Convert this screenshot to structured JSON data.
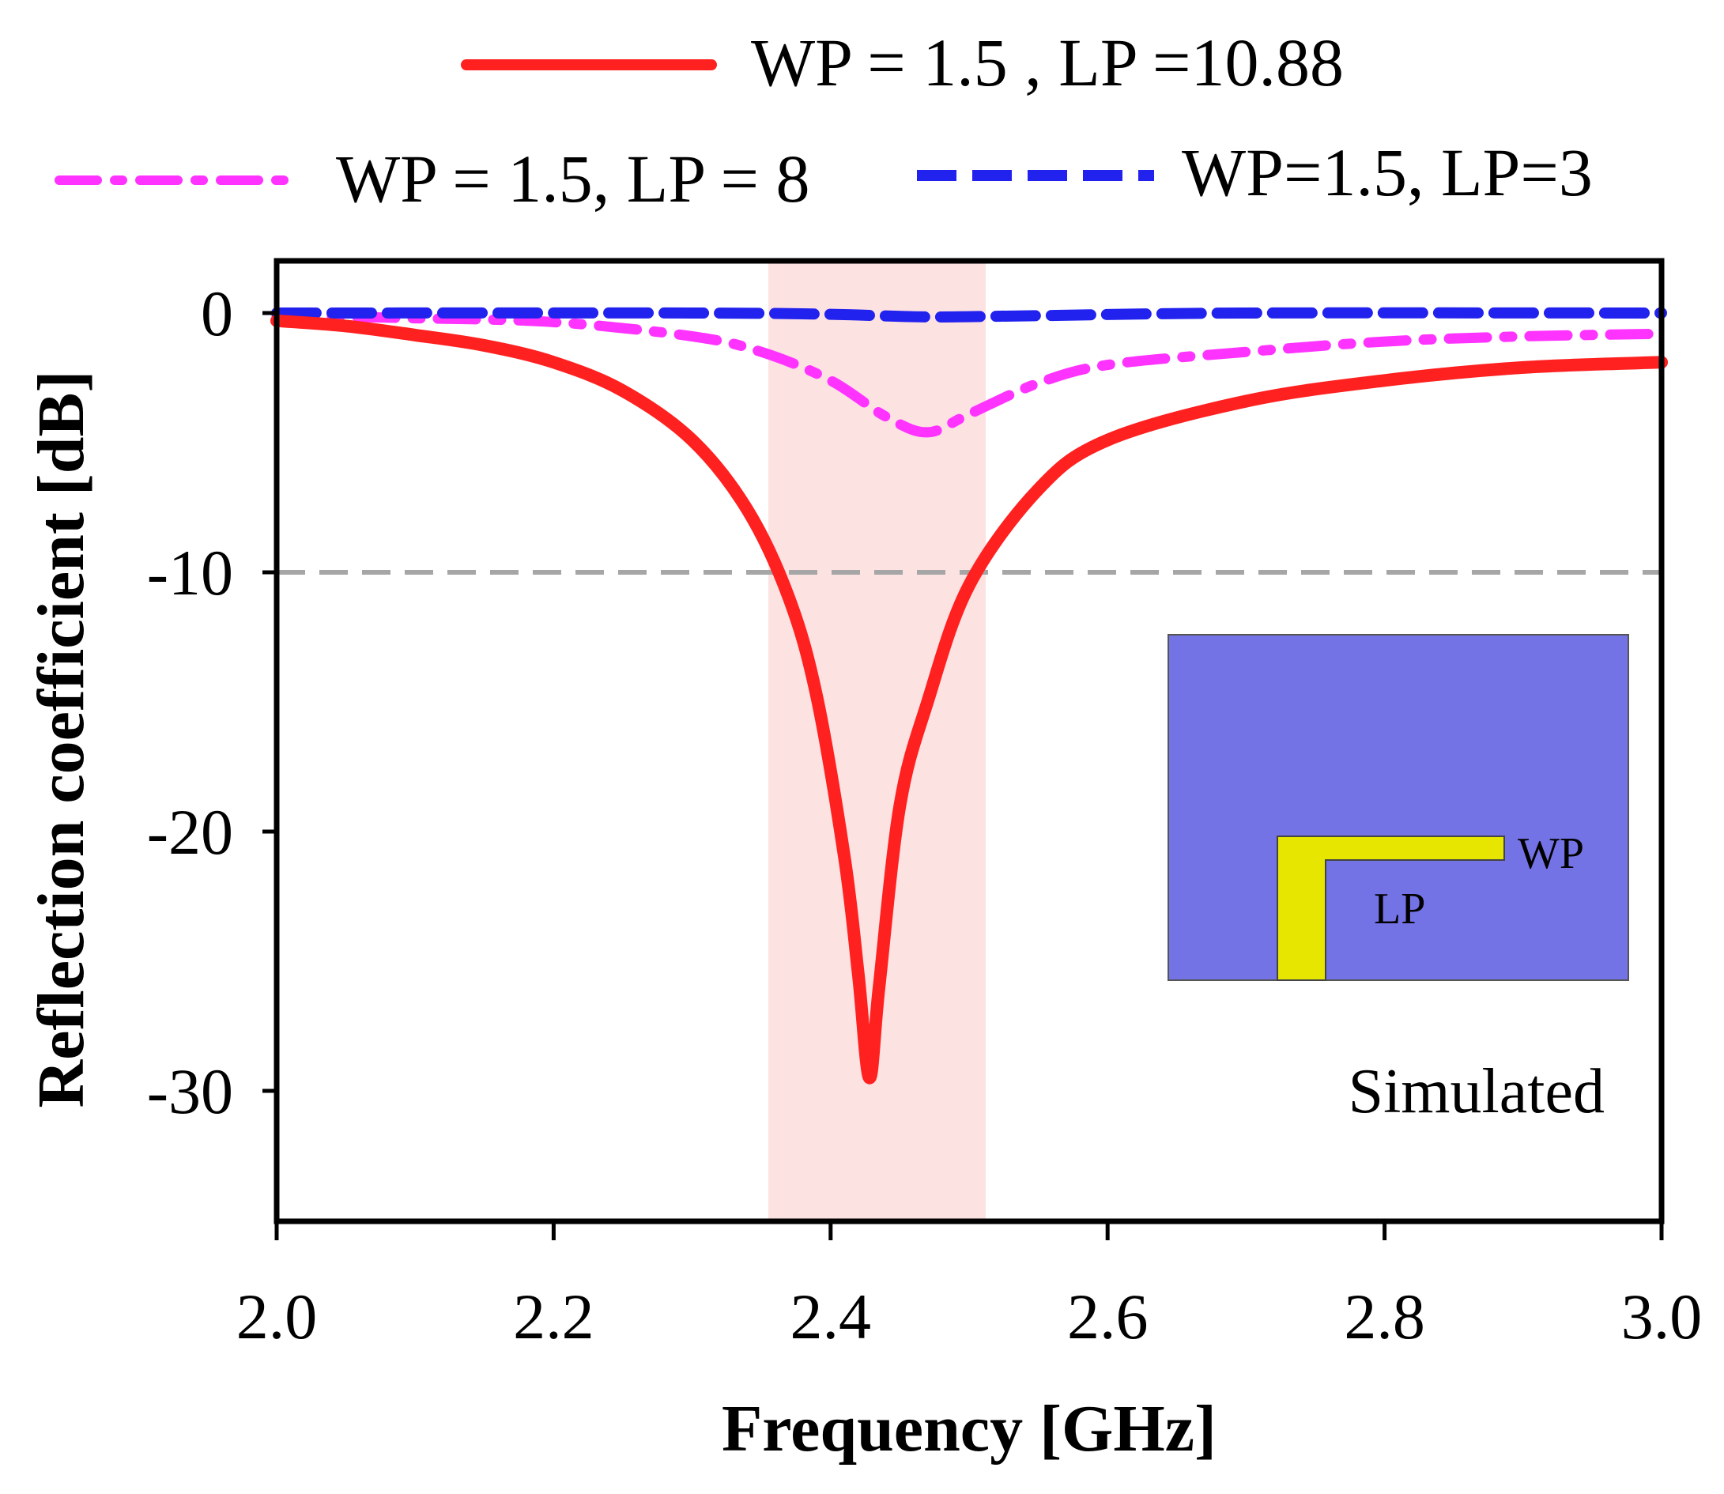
{
  "chart_data": {
    "type": "line",
    "title": "",
    "xlabel": "Frequency [GHz]",
    "ylabel": "Reflection coefficient [dB]",
    "xlim": [
      2.0,
      3.0
    ],
    "ylim": [
      -35,
      2
    ],
    "x_ticks": [
      "2.0",
      "2.2",
      "2.4",
      "2.6",
      "2.8",
      "3.0"
    ],
    "y_ticks": [
      "0",
      "-10",
      "-20",
      "-30"
    ],
    "x_tick_values": [
      2.0,
      2.2,
      2.4,
      2.6,
      2.8,
      3.0
    ],
    "y_tick_values": [
      0,
      -10,
      -20,
      -30
    ],
    "grid": false,
    "reference_line": {
      "y": -10,
      "color": "#a6a6a6",
      "style": "dashed"
    },
    "highlight_band": {
      "x_start": 2.355,
      "x_end": 2.512,
      "color": "#fde2e2"
    },
    "legend_position": "top",
    "series": [
      {
        "name": "WP = 1.5 , LP =10.88",
        "color": "#ff2020",
        "style": "solid",
        "points": [
          [
            2.0,
            -0.3
          ],
          [
            2.05,
            -0.5
          ],
          [
            2.1,
            -0.85
          ],
          [
            2.15,
            -1.25
          ],
          [
            2.2,
            -1.9
          ],
          [
            2.25,
            -3.0
          ],
          [
            2.3,
            -4.9
          ],
          [
            2.34,
            -7.6
          ],
          [
            2.37,
            -11.0
          ],
          [
            2.39,
            -14.8
          ],
          [
            2.41,
            -21.0
          ],
          [
            2.42,
            -25.5
          ],
          [
            2.428,
            -29.5
          ],
          [
            2.435,
            -26.0
          ],
          [
            2.45,
            -19.0
          ],
          [
            2.47,
            -15.0
          ],
          [
            2.5,
            -10.5
          ],
          [
            2.55,
            -6.8
          ],
          [
            2.6,
            -4.9
          ],
          [
            2.7,
            -3.4
          ],
          [
            2.8,
            -2.6
          ],
          [
            2.9,
            -2.1
          ],
          [
            3.0,
            -1.9
          ]
        ]
      },
      {
        "name": "WP = 1.5, LP = 8",
        "color": "#ff33ff",
        "style": "dashdot",
        "points": [
          [
            2.0,
            -0.1
          ],
          [
            2.1,
            -0.2
          ],
          [
            2.2,
            -0.35
          ],
          [
            2.3,
            -0.9
          ],
          [
            2.35,
            -1.5
          ],
          [
            2.4,
            -2.6
          ],
          [
            2.44,
            -4.0
          ],
          [
            2.47,
            -4.6
          ],
          [
            2.5,
            -3.9
          ],
          [
            2.55,
            -2.7
          ],
          [
            2.6,
            -2.0
          ],
          [
            2.7,
            -1.5
          ],
          [
            2.8,
            -1.1
          ],
          [
            2.9,
            -0.9
          ],
          [
            3.0,
            -0.8
          ]
        ]
      },
      {
        "name": "WP=1.5, LP=3",
        "color": "#2222ee",
        "style": "dashed",
        "points": [
          [
            2.0,
            0.0
          ],
          [
            2.3,
            0.0
          ],
          [
            2.4,
            -0.05
          ],
          [
            2.47,
            -0.15
          ],
          [
            2.55,
            -0.1
          ],
          [
            2.7,
            0.0
          ],
          [
            3.0,
            0.0
          ]
        ]
      }
    ],
    "annotations": [
      "Simulated"
    ],
    "inset": {
      "background": "#7373e6",
      "trace_color": "#e6e600",
      "labels": [
        "WP",
        "LP"
      ]
    }
  }
}
